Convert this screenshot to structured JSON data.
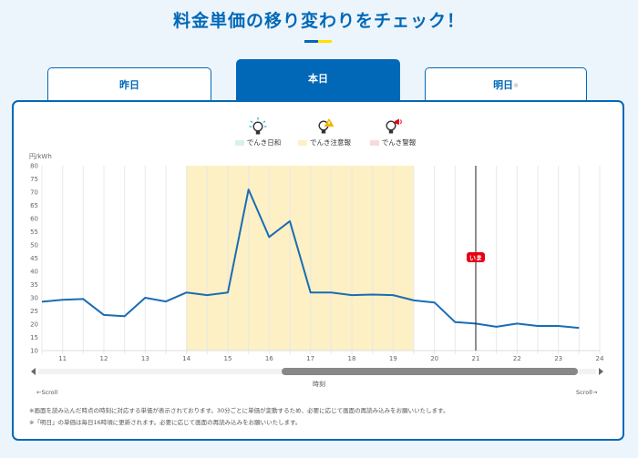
{
  "header": {
    "title": "料金単価の移り変わりをチェック！"
  },
  "tabs": [
    {
      "label": "昨日",
      "active": false
    },
    {
      "label": "本日",
      "active": true
    },
    {
      "label": "明日",
      "suffix": "※",
      "active": false
    }
  ],
  "legend": [
    {
      "label": "でんき日和",
      "icon": "lightbulb-sparkle-icon",
      "color": "#d9f2e6"
    },
    {
      "label": "でんき注意報",
      "icon": "lightbulb-warning-icon",
      "color": "#fdf0c4"
    },
    {
      "label": "でんき警報",
      "icon": "lightbulb-megaphone-icon",
      "color": "#f9d9d9"
    }
  ],
  "colors": {
    "brand": "#0068b7",
    "accent_yellow": "#ffe100",
    "line": "#1a6cb5",
    "caution_band": "#fdf0c4",
    "now_badge": "#e60012"
  },
  "now_marker": {
    "label": "いま",
    "hour": 21
  },
  "scroll": {
    "left_label": "←Scroll",
    "right_label": "Scroll→"
  },
  "notes": [
    "※画面を読み込んだ時点の時刻に対応する単価が表示されております。30分ごとに単価が変動するため、必要に応じて画面の再読み込みをお願いいたします。",
    "※「明日」の単価は毎日16時頃に更新されます。必要に応じて画面の再読み込みをお願いいたします。"
  ],
  "chart_data": {
    "type": "line",
    "title": "",
    "xlabel": "時刻",
    "ylabel": "円/kWh",
    "ylim": [
      10,
      80
    ],
    "yticks": [
      10,
      15,
      20,
      25,
      30,
      35,
      40,
      45,
      50,
      55,
      60,
      65,
      70,
      75,
      80
    ],
    "xlim": [
      10.5,
      24
    ],
    "xticks": [
      11,
      12,
      13,
      14,
      15,
      16,
      17,
      18,
      19,
      20,
      21,
      22,
      23,
      24
    ],
    "grid": true,
    "x": [
      10.5,
      11.0,
      11.5,
      12.0,
      12.5,
      13.0,
      13.5,
      14.0,
      14.5,
      15.0,
      15.5,
      16.0,
      16.5,
      17.0,
      17.5,
      18.0,
      18.5,
      19.0,
      19.5,
      20.0,
      20.5,
      21.0,
      21.5,
      22.0,
      22.5,
      23.0,
      23.5
    ],
    "series": [
      {
        "name": "単価",
        "values": [
          28.5,
          29.2,
          29.5,
          23.5,
          23.0,
          30.0,
          28.6,
          32.0,
          31.0,
          32.0,
          71.0,
          53.0,
          59.0,
          32.0,
          32.0,
          31.0,
          31.2,
          31.0,
          29.0,
          28.2,
          20.8,
          20.2,
          19.0,
          20.2,
          19.3,
          19.3,
          18.6
        ]
      }
    ],
    "bands": [
      {
        "from": 14.0,
        "to": 19.5,
        "label": "でんき注意報",
        "color": "#fdf0c4"
      }
    ],
    "annotations": [
      {
        "x": 21,
        "label": "いま"
      }
    ]
  }
}
